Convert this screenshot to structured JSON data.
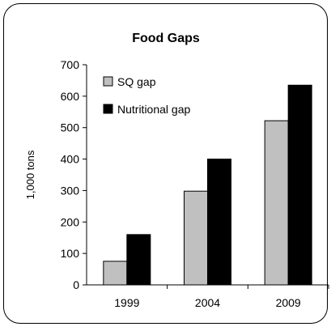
{
  "chart_data": {
    "type": "bar",
    "title": "Food Gaps",
    "xlabel": "",
    "ylabel": "1,000 tons",
    "categories": [
      "1999",
      "2004",
      "2009"
    ],
    "ylim": [
      0,
      700
    ],
    "yticks": [
      0,
      100,
      200,
      300,
      400,
      500,
      600,
      700
    ],
    "grid": false,
    "legend_position": "top-left",
    "series": [
      {
        "name": "SQ gap",
        "values": [
          75,
          298,
          522
        ],
        "color": "#c0c0c0"
      },
      {
        "name": "Nutritional gap",
        "values": [
          160,
          400,
          635
        ],
        "color": "#000000"
      }
    ]
  }
}
